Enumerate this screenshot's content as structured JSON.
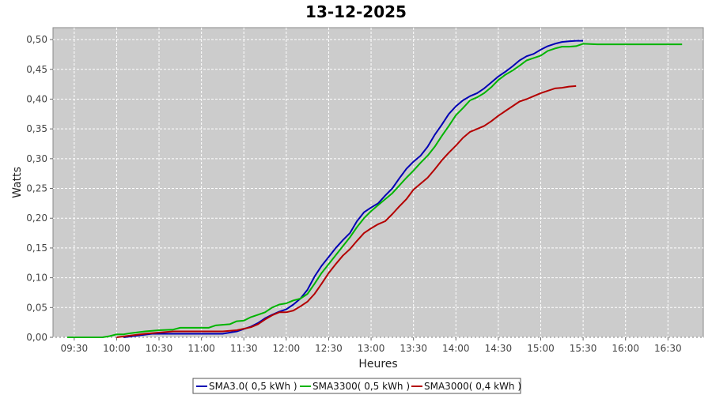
{
  "chart_data": {
    "type": "line",
    "title": "13-12-2025",
    "xlabel": "Heures",
    "ylabel": "Watts",
    "xlim": [
      "09:15",
      "16:55"
    ],
    "ylim": [
      0,
      0.52
    ],
    "x_ticks": [
      "09:30",
      "10:00",
      "10:30",
      "11:00",
      "11:30",
      "12:00",
      "12:30",
      "13:00",
      "13:30",
      "14:00",
      "14:30",
      "15:00",
      "15:30",
      "16:00",
      "16:30"
    ],
    "y_ticks": [
      "0,00",
      "0,05",
      "0,10",
      "0,15",
      "0,20",
      "0,25",
      "0,30",
      "0,35",
      "0,40",
      "0,45",
      "0,50"
    ],
    "grid": true,
    "legend_position": "bottom",
    "series": [
      {
        "name": "SMA3.0( 0,5 kWh )",
        "color": "#0000b4",
        "points": [
          [
            "10:05",
            0.0
          ],
          [
            "10:15",
            0.003
          ],
          [
            "10:25",
            0.006
          ],
          [
            "10:40",
            0.006
          ],
          [
            "11:00",
            0.006
          ],
          [
            "11:15",
            0.006
          ],
          [
            "11:25",
            0.01
          ],
          [
            "11:35",
            0.018
          ],
          [
            "11:40",
            0.024
          ],
          [
            "11:45",
            0.032
          ],
          [
            "11:50",
            0.038
          ],
          [
            "11:55",
            0.043
          ],
          [
            "12:00",
            0.047
          ],
          [
            "12:05",
            0.055
          ],
          [
            "12:10",
            0.065
          ],
          [
            "12:15",
            0.08
          ],
          [
            "12:20",
            0.102
          ],
          [
            "12:25",
            0.12
          ],
          [
            "12:30",
            0.135
          ],
          [
            "12:35",
            0.15
          ],
          [
            "12:40",
            0.163
          ],
          [
            "12:45",
            0.175
          ],
          [
            "12:50",
            0.195
          ],
          [
            "12:55",
            0.21
          ],
          [
            "13:00",
            0.218
          ],
          [
            "13:05",
            0.225
          ],
          [
            "13:10",
            0.238
          ],
          [
            "13:15",
            0.25
          ],
          [
            "13:20",
            0.267
          ],
          [
            "13:25",
            0.283
          ],
          [
            "13:30",
            0.295
          ],
          [
            "13:35",
            0.305
          ],
          [
            "13:40",
            0.32
          ],
          [
            "13:45",
            0.34
          ],
          [
            "13:50",
            0.357
          ],
          [
            "13:55",
            0.375
          ],
          [
            "14:00",
            0.388
          ],
          [
            "14:05",
            0.398
          ],
          [
            "14:10",
            0.405
          ],
          [
            "14:15",
            0.41
          ],
          [
            "14:20",
            0.418
          ],
          [
            "14:25",
            0.428
          ],
          [
            "14:30",
            0.438
          ],
          [
            "14:35",
            0.446
          ],
          [
            "14:40",
            0.455
          ],
          [
            "14:45",
            0.465
          ],
          [
            "14:50",
            0.472
          ],
          [
            "14:55",
            0.476
          ],
          [
            "15:00",
            0.483
          ],
          [
            "15:05",
            0.489
          ],
          [
            "15:10",
            0.493
          ],
          [
            "15:15",
            0.496
          ],
          [
            "15:20",
            0.497
          ],
          [
            "15:25",
            0.498
          ],
          [
            "15:30",
            0.498
          ]
        ]
      },
      {
        "name": "SMA3300( 0,5 kWh )",
        "color": "#00b400",
        "points": [
          [
            "09:25",
            0.0
          ],
          [
            "09:40",
            0.0
          ],
          [
            "09:50",
            0.0
          ],
          [
            "09:55",
            0.002
          ],
          [
            "10:00",
            0.005
          ],
          [
            "10:05",
            0.005
          ],
          [
            "10:10",
            0.007
          ],
          [
            "10:20",
            0.01
          ],
          [
            "10:30",
            0.012
          ],
          [
            "10:40",
            0.013
          ],
          [
            "10:45",
            0.016
          ],
          [
            "11:00",
            0.016
          ],
          [
            "11:05",
            0.016
          ],
          [
            "11:10",
            0.02
          ],
          [
            "11:20",
            0.022
          ],
          [
            "11:25",
            0.027
          ],
          [
            "11:30",
            0.028
          ],
          [
            "11:35",
            0.034
          ],
          [
            "11:40",
            0.038
          ],
          [
            "11:45",
            0.042
          ],
          [
            "11:50",
            0.05
          ],
          [
            "11:55",
            0.055
          ],
          [
            "12:00",
            0.057
          ],
          [
            "12:05",
            0.062
          ],
          [
            "12:10",
            0.065
          ],
          [
            "12:15",
            0.073
          ],
          [
            "12:20",
            0.09
          ],
          [
            "12:25",
            0.108
          ],
          [
            "12:30",
            0.123
          ],
          [
            "12:35",
            0.138
          ],
          [
            "12:40",
            0.153
          ],
          [
            "12:45",
            0.168
          ],
          [
            "12:50",
            0.185
          ],
          [
            "12:55",
            0.2
          ],
          [
            "13:00",
            0.212
          ],
          [
            "13:05",
            0.222
          ],
          [
            "13:10",
            0.232
          ],
          [
            "13:15",
            0.242
          ],
          [
            "13:20",
            0.255
          ],
          [
            "13:25",
            0.268
          ],
          [
            "13:30",
            0.28
          ],
          [
            "13:35",
            0.293
          ],
          [
            "13:40",
            0.305
          ],
          [
            "13:45",
            0.32
          ],
          [
            "13:50",
            0.338
          ],
          [
            "13:55",
            0.355
          ],
          [
            "14:00",
            0.373
          ],
          [
            "14:05",
            0.385
          ],
          [
            "14:10",
            0.398
          ],
          [
            "14:15",
            0.403
          ],
          [
            "14:20",
            0.41
          ],
          [
            "14:25",
            0.42
          ],
          [
            "14:30",
            0.432
          ],
          [
            "14:35",
            0.441
          ],
          [
            "14:40",
            0.448
          ],
          [
            "14:45",
            0.456
          ],
          [
            "14:50",
            0.465
          ],
          [
            "14:55",
            0.469
          ],
          [
            "15:00",
            0.473
          ],
          [
            "15:05",
            0.481
          ],
          [
            "15:10",
            0.485
          ],
          [
            "15:15",
            0.488
          ],
          [
            "15:20",
            0.488
          ],
          [
            "15:25",
            0.489
          ],
          [
            "15:30",
            0.493
          ],
          [
            "15:40",
            0.492
          ],
          [
            "16:00",
            0.492
          ],
          [
            "16:30",
            0.492
          ],
          [
            "16:40",
            0.492
          ]
        ]
      },
      {
        "name": "SMA3000( 0,4 kWh )",
        "color": "#b40000",
        "points": [
          [
            "10:00",
            0.0
          ],
          [
            "10:10",
            0.003
          ],
          [
            "10:20",
            0.006
          ],
          [
            "10:30",
            0.008
          ],
          [
            "10:40",
            0.01
          ],
          [
            "11:00",
            0.01
          ],
          [
            "11:15",
            0.01
          ],
          [
            "11:25",
            0.012
          ],
          [
            "11:35",
            0.017
          ],
          [
            "11:40",
            0.022
          ],
          [
            "11:45",
            0.03
          ],
          [
            "11:50",
            0.037
          ],
          [
            "11:55",
            0.042
          ],
          [
            "12:00",
            0.042
          ],
          [
            "12:05",
            0.045
          ],
          [
            "12:10",
            0.052
          ],
          [
            "12:15",
            0.06
          ],
          [
            "12:20",
            0.073
          ],
          [
            "12:25",
            0.09
          ],
          [
            "12:30",
            0.108
          ],
          [
            "12:35",
            0.123
          ],
          [
            "12:40",
            0.137
          ],
          [
            "12:45",
            0.148
          ],
          [
            "12:50",
            0.162
          ],
          [
            "12:55",
            0.175
          ],
          [
            "13:00",
            0.183
          ],
          [
            "13:05",
            0.19
          ],
          [
            "13:10",
            0.195
          ],
          [
            "13:15",
            0.207
          ],
          [
            "13:20",
            0.22
          ],
          [
            "13:25",
            0.232
          ],
          [
            "13:30",
            0.248
          ],
          [
            "13:35",
            0.258
          ],
          [
            "13:40",
            0.268
          ],
          [
            "13:45",
            0.282
          ],
          [
            "13:50",
            0.297
          ],
          [
            "13:55",
            0.31
          ],
          [
            "14:00",
            0.322
          ],
          [
            "14:05",
            0.335
          ],
          [
            "14:10",
            0.345
          ],
          [
            "14:15",
            0.35
          ],
          [
            "14:20",
            0.355
          ],
          [
            "14:25",
            0.363
          ],
          [
            "14:30",
            0.372
          ],
          [
            "14:35",
            0.38
          ],
          [
            "14:40",
            0.388
          ],
          [
            "14:45",
            0.396
          ],
          [
            "14:50",
            0.4
          ],
          [
            "14:55",
            0.405
          ],
          [
            "15:00",
            0.41
          ],
          [
            "15:05",
            0.414
          ],
          [
            "15:10",
            0.418
          ],
          [
            "15:15",
            0.419
          ],
          [
            "15:20",
            0.421
          ],
          [
            "15:25",
            0.422
          ]
        ]
      }
    ]
  }
}
